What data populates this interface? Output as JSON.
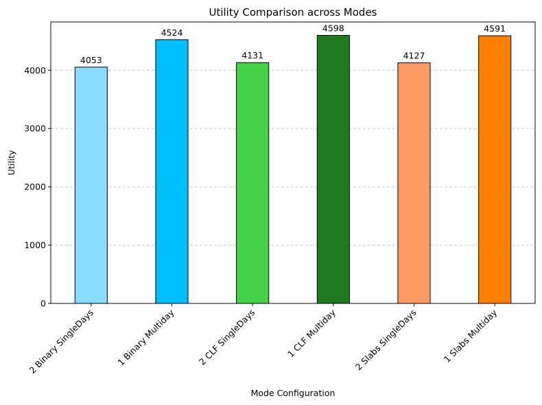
{
  "chart_data": {
    "type": "bar",
    "title": "Utility Comparison across Modes",
    "xlabel": "Mode Configuration",
    "ylabel": "Utility",
    "categories": [
      "2 Binary SingleDays",
      "1 Binary Multiday",
      "2 CLF SingleDays",
      "1 CLF Multiday",
      "2 Slabs SingleDays",
      "1 Slabs Multiday"
    ],
    "values": [
      4053,
      4524,
      4131,
      4598,
      4127,
      4591
    ],
    "data_labels": [
      "4053",
      "4524",
      "4131",
      "4598",
      "4127",
      "4591"
    ],
    "colors": [
      "#87dcff",
      "#00bfff",
      "#46d246",
      "#1f7a1f",
      "#ff9966",
      "#ff8000"
    ],
    "ylim": [
      0,
      4828
    ],
    "yticks": [
      0,
      1000,
      2000,
      3000,
      4000
    ],
    "ytick_labels": [
      "0",
      "1000",
      "2000",
      "3000",
      "4000"
    ],
    "grid": "y-dashed",
    "legend": "none"
  }
}
